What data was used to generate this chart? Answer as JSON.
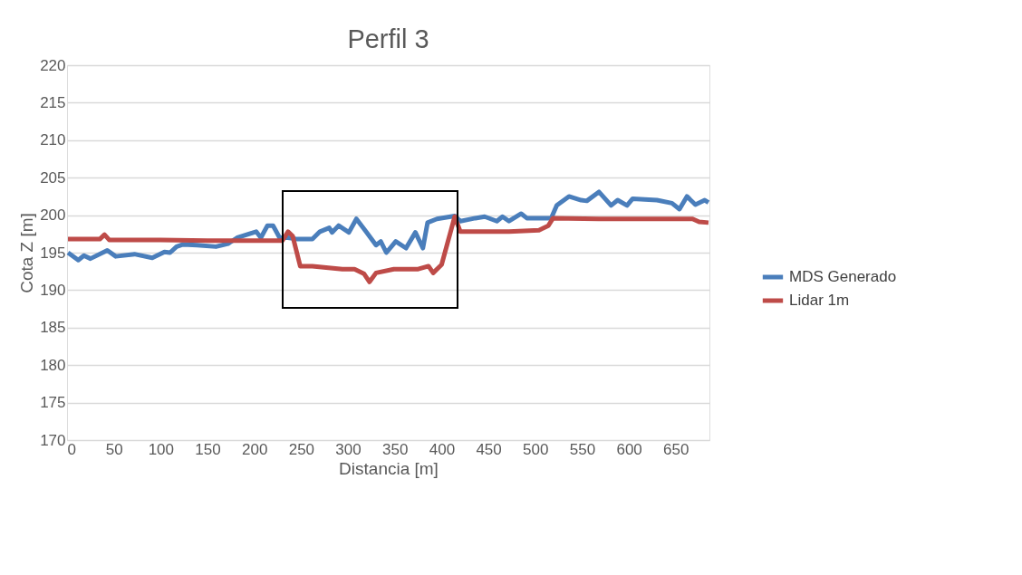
{
  "chart_data": {
    "type": "line",
    "title": "Perfil 3",
    "xlabel": "Distancia [m]",
    "ylabel": "Cota Z [m]",
    "xlim": [
      0,
      686
    ],
    "xticks": [
      0,
      50,
      100,
      150,
      200,
      250,
      300,
      350,
      400,
      450,
      500,
      550,
      600,
      650
    ],
    "ylim": [
      170,
      220
    ],
    "yticks": [
      170,
      175,
      180,
      185,
      190,
      195,
      200,
      205,
      210,
      215,
      220
    ],
    "grid": "y",
    "legend": "right",
    "marker": "none",
    "line_style": "solid",
    "series": [
      {
        "name": "MDS Generado",
        "color": "#4a7ebb",
        "x": [
          1,
          12,
          18,
          25,
          43,
          52,
          72,
          91,
          104,
          110,
          117,
          124,
          139,
          159,
          172,
          182,
          202,
          207,
          214,
          220,
          227,
          236,
          246,
          262,
          270,
          280,
          283,
          290,
          301,
          309,
          320,
          330,
          335,
          341,
          351,
          362,
          372,
          380,
          385,
          395,
          414,
          420,
          436,
          446,
          459,
          465,
          472,
          485,
          491,
          517,
          523,
          536,
          549,
          555,
          568,
          581,
          588,
          598,
          604,
          630,
          646,
          654,
          662,
          671,
          681,
          685
        ],
        "values": [
          195.0,
          194.0,
          194.6,
          194.2,
          195.3,
          194.5,
          194.8,
          194.3,
          195.1,
          195.0,
          195.8,
          196.1,
          196.0,
          195.8,
          196.2,
          197.0,
          197.8,
          197.0,
          198.6,
          198.6,
          197.0,
          197.0,
          196.8,
          196.8,
          197.8,
          198.3,
          197.7,
          198.6,
          197.7,
          199.5,
          197.7,
          196.0,
          196.5,
          195.0,
          196.5,
          195.6,
          197.7,
          195.6,
          199.0,
          199.5,
          199.9,
          199.2,
          199.6,
          199.8,
          199.2,
          199.8,
          199.2,
          200.2,
          199.6,
          199.6,
          201.3,
          202.5,
          202.0,
          201.9,
          203.1,
          201.3,
          202.0,
          201.3,
          202.2,
          202.0,
          201.6,
          200.8,
          202.5,
          201.4,
          202.0,
          201.7
        ]
      },
      {
        "name": "Lidar 1m",
        "color": "#be4b48",
        "x": [
          1,
          35,
          40,
          45,
          100,
          150,
          214,
          230,
          236,
          241,
          249,
          262,
          294,
          307,
          317,
          323,
          330,
          349,
          375,
          386,
          391,
          400,
          414,
          420,
          436,
          472,
          504,
          514,
          519,
          568,
          668,
          675,
          685
        ],
        "values": [
          196.8,
          196.8,
          197.4,
          196.7,
          196.7,
          196.6,
          196.6,
          196.6,
          197.8,
          197.2,
          193.2,
          193.2,
          192.8,
          192.8,
          192.2,
          191.1,
          192.3,
          192.8,
          192.8,
          193.2,
          192.3,
          193.4,
          199.8,
          197.8,
          197.8,
          197.8,
          198.0,
          198.6,
          199.6,
          199.5,
          199.5,
          199.1,
          199.0
        ]
      }
    ]
  }
}
